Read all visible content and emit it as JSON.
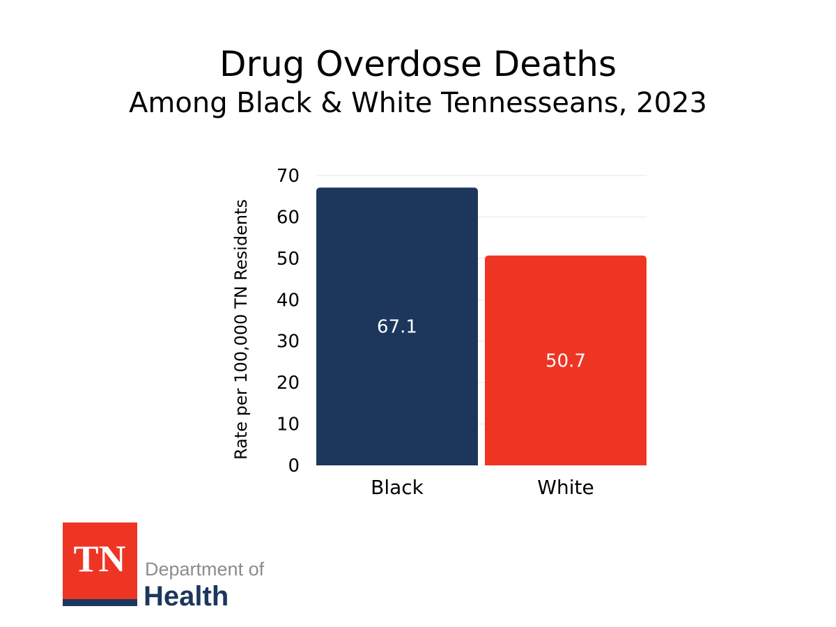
{
  "chart_data": {
    "type": "bar",
    "title": "Drug Overdose Deaths",
    "subtitle": "Among Black & White Tennesseans, 2023",
    "categories": [
      "Black",
      "White"
    ],
    "values": [
      67.1,
      50.7
    ],
    "data_labels": [
      "67.1",
      "50.7"
    ],
    "colors": [
      "#1d365c",
      "#ee3524"
    ],
    "xlabel": "",
    "ylabel": "Rate per 100,000 TN Residents",
    "ylim": [
      0,
      70
    ],
    "yticks": [
      0,
      10,
      20,
      30,
      40,
      50,
      60,
      70
    ],
    "grid": true,
    "legend": "none"
  },
  "logo": {
    "mark": "TN",
    "line1": "Department of",
    "line2": "Health",
    "colors": {
      "red": "#ee3524",
      "navy": "#1d365c",
      "gray": "#8a8c8e"
    }
  }
}
